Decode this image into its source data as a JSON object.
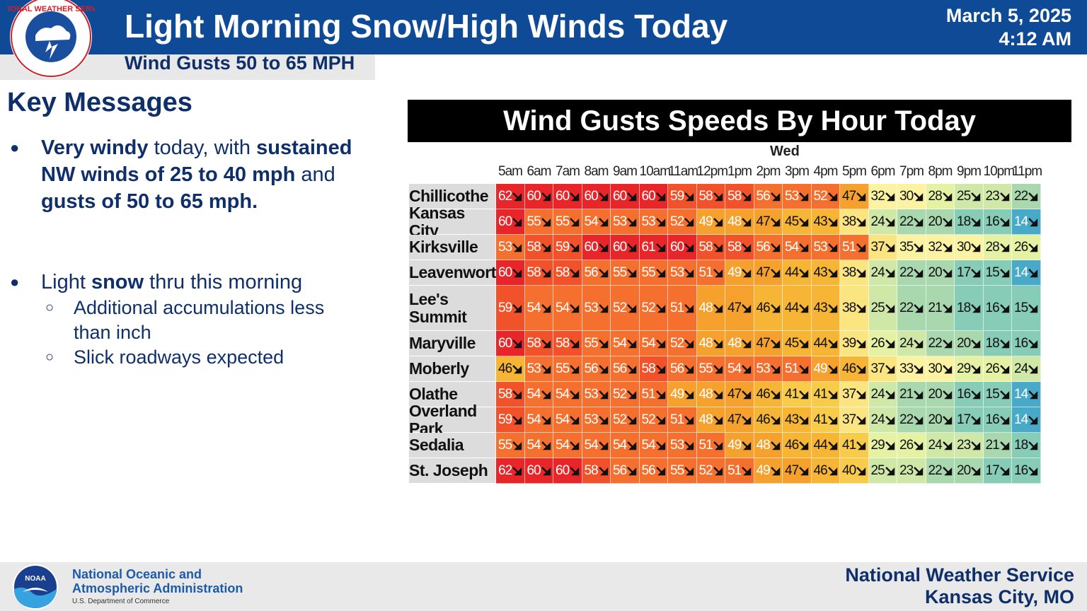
{
  "header": {
    "title": "Light Morning Snow/High Winds Today",
    "subtitle": "Wind Gusts 50 to 65 MPH",
    "date": "March 5, 2025",
    "time": "4:12 AM",
    "logo_text": "NATIONAL WEATHER SERVICE"
  },
  "key_messages": {
    "title": "Key Messages",
    "bullet1": {
      "b1": "Very windy",
      "t1": " today, with ",
      "b2": "sustained NW winds of 25 to 40 mph",
      "t2": " and ",
      "b3": "gusts of 50 to 65 mph."
    },
    "bullet2": {
      "t1": "Light ",
      "b1": "snow",
      "t2": " thru this morning"
    },
    "sub1": "Additional accumulations less than inch",
    "sub2": "Slick roadways expected"
  },
  "chart": {
    "title": "Wind Gusts Speeds By Hour Today",
    "day": "Wed",
    "hours": [
      "5am",
      "6am",
      "7am",
      "8am",
      "9am",
      "10am",
      "11am",
      "12pm",
      "1pm",
      "2pm",
      "3pm",
      "4pm",
      "5pm",
      "6pm",
      "7pm",
      "8pm",
      "9pm",
      "10pm",
      "11pm"
    ]
  },
  "chart_data": {
    "type": "table",
    "title": "Wind Gusts Speeds By Hour Today",
    "columns": [
      "5am",
      "6am",
      "7am",
      "8am",
      "9am",
      "10am",
      "11am",
      "12pm",
      "1pm",
      "2pm",
      "3pm",
      "4pm",
      "5pm",
      "6pm",
      "7pm",
      "8pm",
      "9pm",
      "10pm",
      "11pm"
    ],
    "rows": [
      {
        "name": "Chillicothe",
        "values": [
          62,
          60,
          60,
          60,
          60,
          60,
          59,
          58,
          58,
          56,
          53,
          52,
          47,
          32,
          30,
          28,
          25,
          23,
          22
        ]
      },
      {
        "name": "Kansas City",
        "values": [
          60,
          55,
          55,
          54,
          53,
          53,
          52,
          49,
          48,
          47,
          45,
          43,
          38,
          24,
          22,
          20,
          18,
          16,
          14
        ]
      },
      {
        "name": "Kirksville",
        "values": [
          53,
          58,
          59,
          60,
          60,
          61,
          60,
          58,
          58,
          56,
          54,
          53,
          51,
          37,
          35,
          32,
          30,
          28,
          26
        ]
      },
      {
        "name": "Leavenworth",
        "values": [
          60,
          58,
          58,
          56,
          55,
          55,
          53,
          51,
          49,
          47,
          44,
          43,
          38,
          24,
          22,
          20,
          17,
          15,
          14
        ]
      },
      {
        "name": "Lee's Summit",
        "values": [
          59,
          54,
          54,
          53,
          52,
          52,
          51,
          48,
          47,
          46,
          44,
          43,
          38,
          25,
          22,
          21,
          18,
          16,
          15
        ]
      },
      {
        "name": "Maryville",
        "values": [
          60,
          58,
          58,
          55,
          54,
          54,
          52,
          48,
          48,
          47,
          45,
          44,
          39,
          26,
          24,
          22,
          20,
          18,
          16
        ]
      },
      {
        "name": "Moberly",
        "values": [
          46,
          53,
          55,
          56,
          56,
          58,
          56,
          55,
          54,
          53,
          51,
          49,
          46,
          37,
          33,
          30,
          29,
          26,
          24
        ]
      },
      {
        "name": "Olathe",
        "values": [
          58,
          54,
          54,
          53,
          52,
          51,
          49,
          48,
          47,
          46,
          41,
          41,
          37,
          24,
          21,
          20,
          16,
          15,
          14
        ]
      },
      {
        "name": "Overland Park",
        "values": [
          59,
          54,
          54,
          53,
          52,
          52,
          51,
          48,
          47,
          46,
          43,
          41,
          37,
          24,
          22,
          20,
          17,
          16,
          14
        ]
      },
      {
        "name": "Sedalia",
        "values": [
          55,
          54,
          54,
          54,
          54,
          54,
          53,
          51,
          49,
          48,
          46,
          44,
          41,
          29,
          26,
          24,
          23,
          21,
          18
        ]
      },
      {
        "name": "St. Joseph",
        "values": [
          62,
          60,
          60,
          58,
          56,
          56,
          55,
          52,
          51,
          49,
          47,
          46,
          40,
          25,
          23,
          22,
          20,
          17,
          16
        ]
      }
    ],
    "wind_direction": "NW"
  },
  "footer": {
    "noaa_line1": "National Oceanic and",
    "noaa_line2": "Atmospheric Administration",
    "noaa_dept": "U.S. Department of Commerce",
    "office_line1": "National Weather Service",
    "office_line2": "Kansas City, MO",
    "noaa_logo_text": "NOAA"
  }
}
